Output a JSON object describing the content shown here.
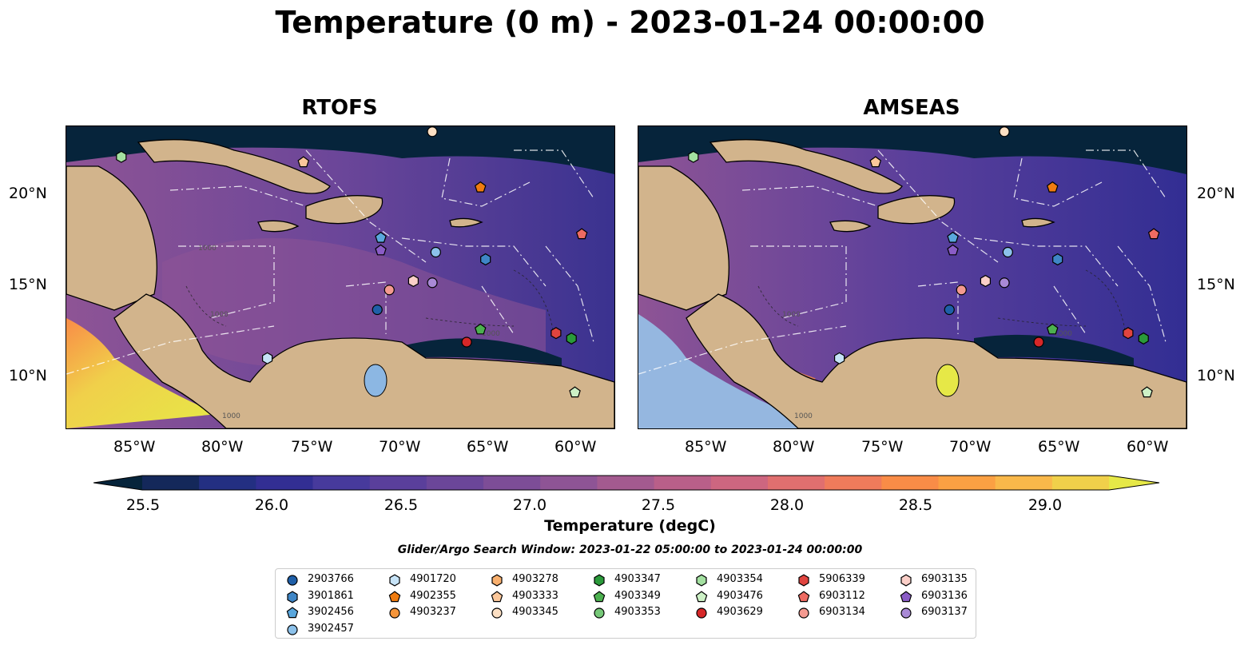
{
  "title": "Temperature (0 m) - 2023-01-24 00:00:00",
  "panels": [
    {
      "title": "RTOFS"
    },
    {
      "title": "AMSEAS"
    }
  ],
  "axes": {
    "x_ticks": [
      "85°W",
      "80°W",
      "75°W",
      "70°W",
      "65°W",
      "60°W"
    ],
    "y_ticks": [
      "20°N",
      "15°N",
      "10°N"
    ]
  },
  "colorbar": {
    "label": "Temperature (degC)",
    "ticks": [
      "25.5",
      "26.0",
      "26.5",
      "27.0",
      "27.5",
      "28.0",
      "28.5",
      "29.0"
    ],
    "min": 25.5,
    "max": 29.0,
    "colors": [
      "#06243b",
      "#14285a",
      "#232f82",
      "#322e93",
      "#473a9c",
      "#5a3f9b",
      "#6b4699",
      "#7d4d97",
      "#8e5495",
      "#a35a8f",
      "#b95f89",
      "#cd6680",
      "#e06f6f",
      "#ef7b5b",
      "#f98c47",
      "#fba043",
      "#f9b84a",
      "#f0d04a",
      "#e6e847"
    ]
  },
  "contour_labels": [
    "1000",
    "1000",
    "1000",
    "1000",
    "1000",
    "1000",
    "1000"
  ],
  "search_window": "Glider/Argo Search Window: 2023-01-22 05:00:00 to 2023-01-24 00:00:00",
  "legend": [
    {
      "id": "2903766",
      "color": "#1f5fa8",
      "shape": "circle"
    },
    {
      "id": "3901861",
      "color": "#3f86c6",
      "shape": "hexagon"
    },
    {
      "id": "3902456",
      "color": "#5aa7dd",
      "shape": "pentagon"
    },
    {
      "id": "3902457",
      "color": "#8cc1ea",
      "shape": "circle"
    },
    {
      "id": "4901720",
      "color": "#c6e3f7",
      "shape": "hexagon"
    },
    {
      "id": "4902355",
      "color": "#f07c10",
      "shape": "pentagon"
    },
    {
      "id": "4903237",
      "color": "#f5953a",
      "shape": "circle"
    },
    {
      "id": "4903278",
      "color": "#f9b06e",
      "shape": "hexagon"
    },
    {
      "id": "4903333",
      "color": "#fbc79a",
      "shape": "pentagon"
    },
    {
      "id": "4903345",
      "color": "#fde0c4",
      "shape": "circle"
    },
    {
      "id": "4903347",
      "color": "#2a9a3a",
      "shape": "hexagon"
    },
    {
      "id": "4903349",
      "color": "#4cb04f",
      "shape": "pentagon"
    },
    {
      "id": "4903353",
      "color": "#76c878",
      "shape": "circle"
    },
    {
      "id": "4903354",
      "color": "#a3e0a0",
      "shape": "hexagon"
    },
    {
      "id": "4903476",
      "color": "#cdf1c6",
      "shape": "pentagon"
    },
    {
      "id": "4903629",
      "color": "#d62728",
      "shape": "circle"
    },
    {
      "id": "5906339",
      "color": "#e0443f",
      "shape": "hexagon"
    },
    {
      "id": "6903112",
      "color": "#ee6b62",
      "shape": "pentagon"
    },
    {
      "id": "6903134",
      "color": "#f49a90",
      "shape": "circle"
    },
    {
      "id": "6903135",
      "color": "#fbcfc8",
      "shape": "hexagon"
    },
    {
      "id": "6903136",
      "color": "#8a5cc6",
      "shape": "pentagon"
    },
    {
      "id": "6903137",
      "color": "#a98ad6",
      "shape": "circle"
    }
  ],
  "markers": [
    {
      "id": "4903354",
      "lon": -85.8,
      "lat": 22.1
    },
    {
      "id": "4903333",
      "lon": -75.2,
      "lat": 21.8
    },
    {
      "id": "4903345",
      "lon": -67.7,
      "lat": 23.5
    },
    {
      "id": "4902355",
      "lon": -64.9,
      "lat": 20.4
    },
    {
      "id": "3902456",
      "lon": -70.7,
      "lat": 17.6
    },
    {
      "id": "6903136",
      "lon": -70.7,
      "lat": 16.9
    },
    {
      "id": "3902457",
      "lon": -67.5,
      "lat": 16.8
    },
    {
      "id": "3901861",
      "lon": -64.6,
      "lat": 16.4
    },
    {
      "id": "6903134",
      "lon": -70.2,
      "lat": 14.7
    },
    {
      "id": "6903135",
      "lon": -68.8,
      "lat": 15.2
    },
    {
      "id": "6903137",
      "lon": -67.7,
      "lat": 15.1
    },
    {
      "id": "2903766",
      "lon": -70.9,
      "lat": 13.6
    },
    {
      "id": "4903349",
      "lon": -64.9,
      "lat": 12.5
    },
    {
      "id": "4903629",
      "lon": -65.7,
      "lat": 11.8
    },
    {
      "id": "5906339",
      "lon": -60.5,
      "lat": 12.3
    },
    {
      "id": "4903347",
      "lon": -59.6,
      "lat": 12.0
    },
    {
      "id": "4903476",
      "lon": -59.4,
      "lat": 9.0
    },
    {
      "id": "6903112",
      "lon": -59.0,
      "lat": 17.8
    },
    {
      "id": "4901720",
      "lon": -77.3,
      "lat": 10.9
    }
  ]
}
